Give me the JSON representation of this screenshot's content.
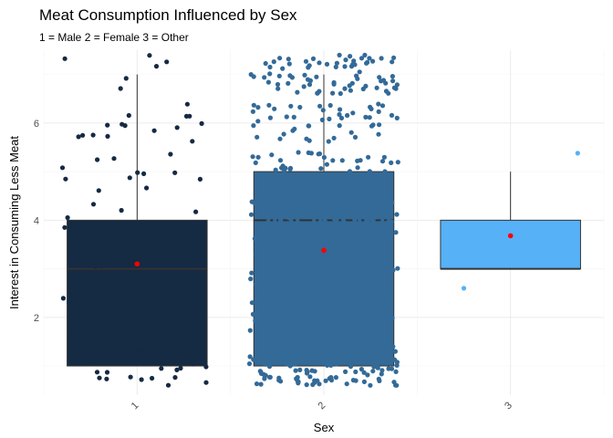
{
  "chart_data": {
    "type": "box",
    "title": "Meat Consumption Influenced by Sex",
    "subtitle": "1 = Male  2 = Female  3 = Other",
    "xlabel": "Sex",
    "ylabel": "Interest in Consuming Less Meat",
    "ylim": [
      0.4,
      7.5
    ],
    "yticks": [
      2,
      4,
      6
    ],
    "categories": [
      "1",
      "2",
      "3"
    ],
    "grid": true,
    "legend": "none",
    "boxes": [
      {
        "category": "1",
        "q1": 1,
        "median": 3,
        "q3": 4,
        "whisker_low": 1,
        "whisker_high": 7,
        "mean": 3.1,
        "color": "#152a43"
      },
      {
        "category": "2",
        "q1": 1,
        "median": 4,
        "q3": 5,
        "whisker_low": 1,
        "whisker_high": 7,
        "mean": 3.38,
        "color": "#336a98"
      },
      {
        "category": "3",
        "q1": 3,
        "median": 3,
        "q3": 4,
        "whisker_low": 3,
        "whisker_high": 5,
        "mean": 3.68,
        "color": "#56b1f7"
      }
    ],
    "jitter_points": [
      {
        "category": "1",
        "count": 90,
        "color": "#152a43"
      },
      {
        "category": "2",
        "count": 470,
        "color": "#336a98"
      },
      {
        "category": "3",
        "count": 2,
        "color": "#56b1f7",
        "values": [
          2.6,
          5.38
        ]
      }
    ],
    "mean_marker_color": "#ff0000"
  }
}
